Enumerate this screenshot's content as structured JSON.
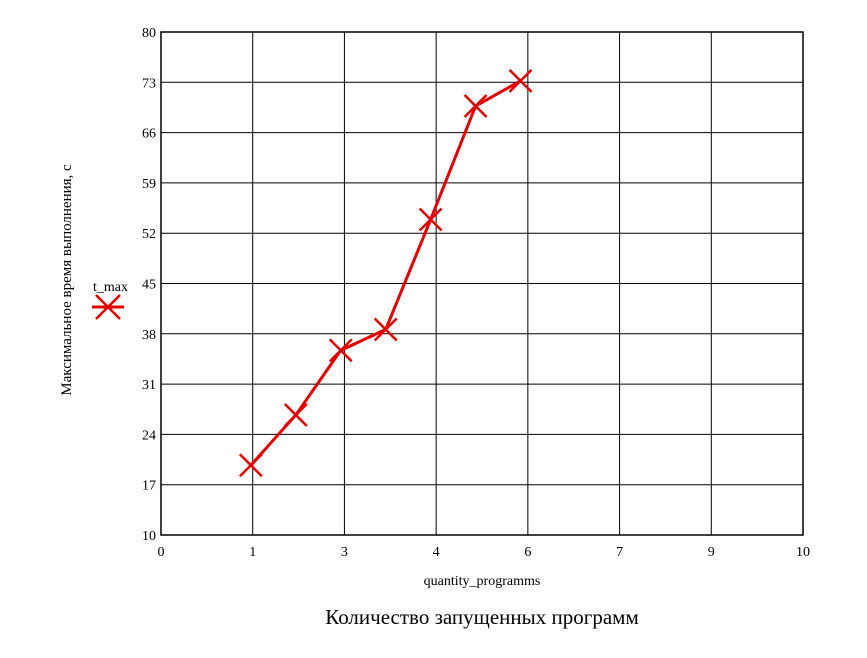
{
  "chart_data": {
    "type": "line",
    "xlabel": "quantity_programms",
    "ylabel": "Максимальное время выполнения, с",
    "caption": "Количество запущенных программ",
    "legend": {
      "label": "t_max",
      "placement": "left"
    },
    "x_tick_labels": [
      "0",
      "1",
      "3",
      "4",
      "6",
      "7",
      "9",
      "10"
    ],
    "y_tick_labels": [
      "10",
      "17",
      "24",
      "31",
      "38",
      "45",
      "52",
      "59",
      "66",
      "73",
      "80"
    ],
    "y_ticks": [
      10,
      17,
      24,
      31,
      38,
      45,
      52,
      59,
      66,
      73,
      80
    ],
    "xlim": [
      0,
      10
    ],
    "ylim": [
      10,
      80
    ],
    "grid": true,
    "series": [
      {
        "name": "t_max",
        "color": "#e00000",
        "marker": "x",
        "x": [
          1.4,
          2.1,
          2.8,
          3.5,
          4.2,
          4.9,
          5.6
        ],
        "y": [
          19.7,
          26.7,
          35.7,
          38.6,
          53.9,
          69.7,
          73.2
        ]
      }
    ]
  }
}
